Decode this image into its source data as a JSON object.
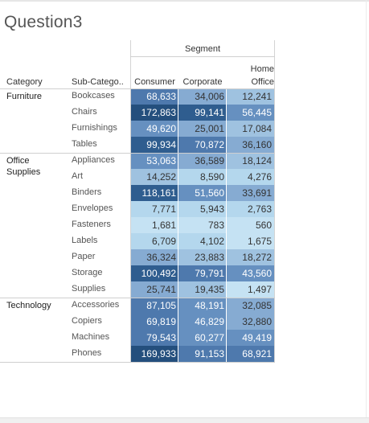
{
  "title": "Question3",
  "chart_data": {
    "type": "heatmap",
    "column_group_header": "Segment",
    "row_headers": [
      "Category",
      "Sub-Catego.."
    ],
    "columns": [
      "Consumer",
      "Corporate",
      "Home\nOffice"
    ],
    "rows": [
      {
        "category": "Furniture",
        "sub": "Bookcases",
        "values": [
          68633,
          34006,
          12241
        ],
        "labels": [
          "68,633",
          "34,006",
          "12,241"
        ]
      },
      {
        "category": "",
        "sub": "Chairs",
        "values": [
          172863,
          99141,
          56445
        ],
        "labels": [
          "172,863",
          "99,141",
          "56,445"
        ]
      },
      {
        "category": "",
        "sub": "Furnishings",
        "values": [
          49620,
          25001,
          17084
        ],
        "labels": [
          "49,620",
          "25,001",
          "17,084"
        ]
      },
      {
        "category": "",
        "sub": "Tables",
        "values": [
          99934,
          70872,
          36160
        ],
        "labels": [
          "99,934",
          "70,872",
          "36,160"
        ]
      },
      {
        "category": "Office\nSupplies",
        "sub": "Appliances",
        "values": [
          53063,
          36589,
          18124
        ],
        "labels": [
          "53,063",
          "36,589",
          "18,124"
        ]
      },
      {
        "category": "",
        "sub": "Art",
        "values": [
          14252,
          8590,
          4276
        ],
        "labels": [
          "14,252",
          "8,590",
          "4,276"
        ]
      },
      {
        "category": "",
        "sub": "Binders",
        "values": [
          118161,
          51560,
          33691
        ],
        "labels": [
          "118,161",
          "51,560",
          "33,691"
        ]
      },
      {
        "category": "",
        "sub": "Envelopes",
        "values": [
          7771,
          5943,
          2763
        ],
        "labels": [
          "7,771",
          "5,943",
          "2,763"
        ]
      },
      {
        "category": "",
        "sub": "Fasteners",
        "values": [
          1681,
          783,
          560
        ],
        "labels": [
          "1,681",
          "783",
          "560"
        ]
      },
      {
        "category": "",
        "sub": "Labels",
        "values": [
          6709,
          4102,
          1675
        ],
        "labels": [
          "6,709",
          "4,102",
          "1,675"
        ]
      },
      {
        "category": "",
        "sub": "Paper",
        "values": [
          36324,
          23883,
          18272
        ],
        "labels": [
          "36,324",
          "23,883",
          "18,272"
        ]
      },
      {
        "category": "",
        "sub": "Storage",
        "values": [
          100492,
          79791,
          43560
        ],
        "labels": [
          "100,492",
          "79,791",
          "43,560"
        ]
      },
      {
        "category": "",
        "sub": "Supplies",
        "values": [
          25741,
          19435,
          1497
        ],
        "labels": [
          "25,741",
          "19,435",
          "1,497"
        ]
      },
      {
        "category": "Technology",
        "sub": "Accessories",
        "values": [
          87105,
          48191,
          32085
        ],
        "labels": [
          "87,105",
          "48,191",
          "32,085"
        ]
      },
      {
        "category": "",
        "sub": "Copiers",
        "values": [
          69819,
          46829,
          32880
        ],
        "labels": [
          "69,819",
          "46,829",
          "32,880"
        ]
      },
      {
        "category": "",
        "sub": "Machines",
        "values": [
          79543,
          60277,
          49419
        ],
        "labels": [
          "79,543",
          "60,277",
          "49,419"
        ]
      },
      {
        "category": "",
        "sub": "Phones",
        "values": [
          169933,
          91153,
          68921
        ],
        "labels": [
          "169,933",
          "91,153",
          "68,921"
        ]
      }
    ],
    "color_scale": {
      "palette": [
        "#c5e2f3",
        "#b4d7ed",
        "#9fc2e0",
        "#86abd2",
        "#6690c0",
        "#4e79ad",
        "#2f5d8f",
        "#244f7d"
      ],
      "text_dark": "#333333",
      "text_light": "#ffffff"
    }
  }
}
